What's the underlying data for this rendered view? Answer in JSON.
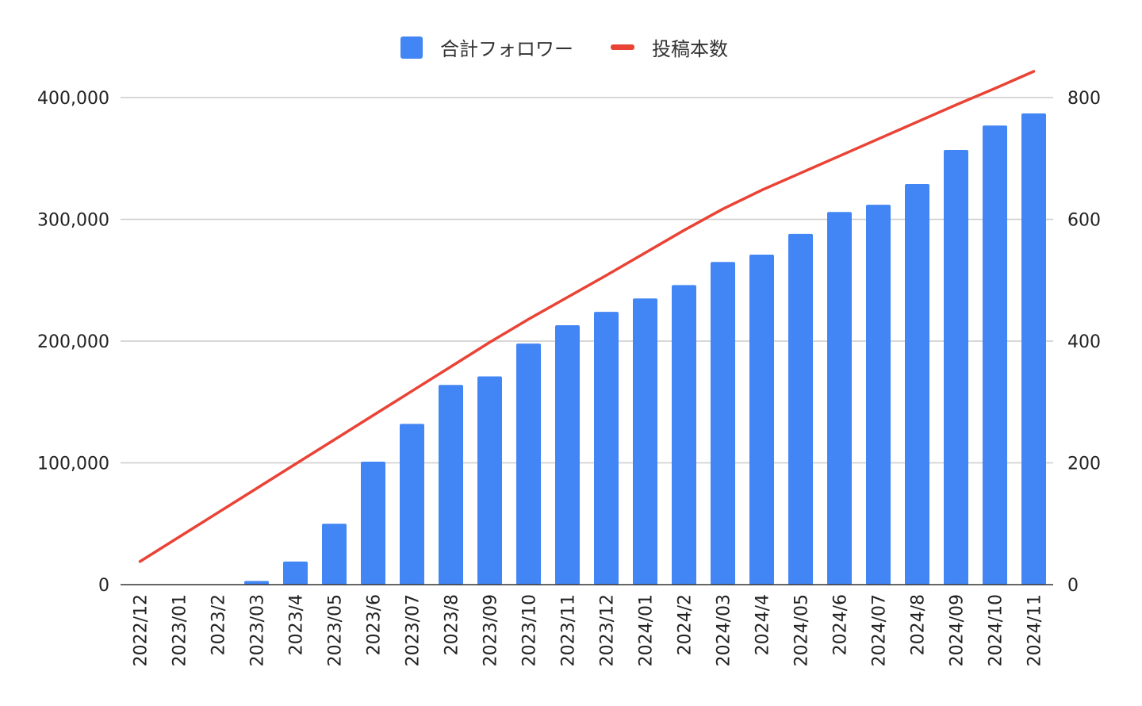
{
  "chart_data": {
    "type": "bar",
    "title": "",
    "xlabel": "",
    "ylabel": "",
    "ylabel_right": "",
    "categories": [
      "2022/12",
      "2023/01",
      "2023/2",
      "2023/03",
      "2023/4",
      "2023/05",
      "2023/6",
      "2023/07",
      "2023/8",
      "2023/09",
      "2023/10",
      "2023/11",
      "2023/12",
      "2024/01",
      "2024/2",
      "2024/03",
      "2024/4",
      "2024/05",
      "2024/6",
      "2024/07",
      "2024/8",
      "2024/09",
      "2024/10",
      "2024/11"
    ],
    "series": [
      {
        "name": "合計フォロワー",
        "type": "bar",
        "axis": "left",
        "color": "#4285f4",
        "values": [
          0,
          0,
          0,
          3000,
          19000,
          50000,
          101000,
          132000,
          164000,
          171000,
          198000,
          213000,
          224000,
          235000,
          246000,
          265000,
          271000,
          288000,
          306000,
          312000,
          329000,
          357000,
          377000,
          387000
        ]
      },
      {
        "name": "投稿本数",
        "type": "line",
        "axis": "right",
        "color": "#ea4335",
        "values": [
          38,
          78,
          118,
          158,
          198,
          238,
          278,
          318,
          358,
          398,
          436,
          472,
          508,
          545,
          582,
          617,
          648,
          676,
          704,
          732,
          760,
          788,
          815,
          843
        ]
      }
    ],
    "ylim_left": [
      0,
      400000
    ],
    "ylim_right": [
      0,
      800
    ],
    "yticks_left": [
      "0",
      "100,000",
      "200,000",
      "300,000",
      "400,000"
    ],
    "yticks_right": [
      "0",
      "200",
      "400",
      "600",
      "800"
    ],
    "grid": true,
    "legend_position": "top"
  }
}
